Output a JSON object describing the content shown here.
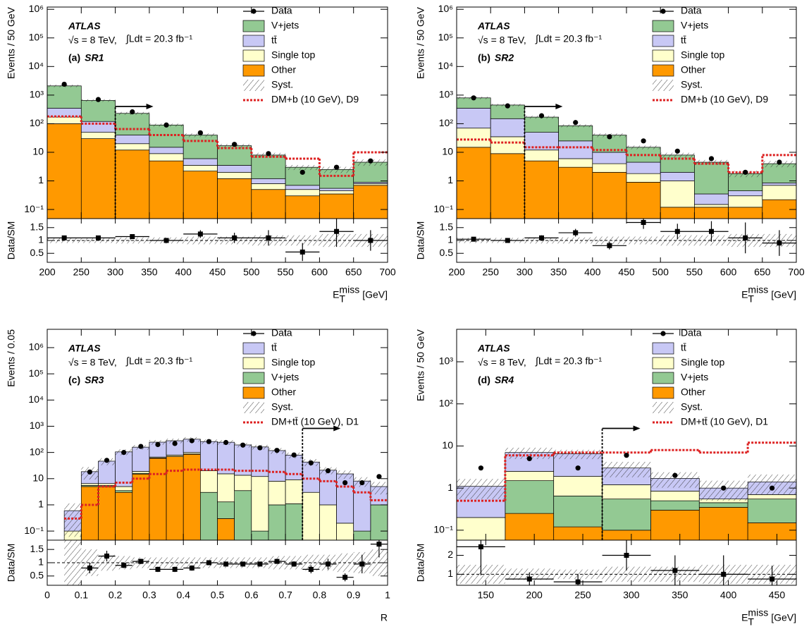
{
  "chart_data": [
    {
      "type": "stacked_histogram",
      "experiment": "ATLAS",
      "energy": "√s = 8 TeV,",
      "luminosity": "∫Ldt = 20.3 fb⁻¹",
      "panel": "(a)",
      "region": "SR1",
      "ylabel": "Events / 50 GeV",
      "ratio_ylabel": "Data/SM",
      "xlabel": {
        "base": "E",
        "sup": "miss",
        "sub": "T",
        "unit": "[GeV]"
      },
      "bins": [
        200,
        250,
        300,
        350,
        400,
        450,
        500,
        550,
        600,
        650,
        700
      ],
      "xlim": [
        200,
        700
      ],
      "xticks": [
        200,
        250,
        300,
        350,
        400,
        450,
        500,
        550,
        600,
        650,
        700
      ],
      "log_y": true,
      "ylim": [
        0.048,
        1200000
      ],
      "yticks": [
        {
          "value": 0.1,
          "label": "10⁻¹"
        },
        1,
        10,
        {
          "value": 100,
          "label": "10²"
        },
        {
          "value": 1000,
          "label": "10³"
        },
        {
          "value": 10000,
          "label": "10⁴"
        },
        {
          "value": 100000,
          "label": "10⁵"
        },
        {
          "value": 1000000,
          "label": "10⁶"
        }
      ],
      "ratio_ylim": [
        0.15,
        1.85
      ],
      "ratio_yticks": [
        0.5,
        1,
        1.5
      ],
      "ratio_reference": 1,
      "data": {
        "name": "Data",
        "color": "#000000",
        "values": [
          2400,
          700,
          260,
          90,
          48,
          19,
          9,
          2,
          3,
          5
        ]
      },
      "series": [
        {
          "name": "Other",
          "color": "#ff9900",
          "values": [
            100,
            30,
            12,
            5,
            2.2,
            1.2,
            0.5,
            0.3,
            0.35,
            0.7
          ]
        },
        {
          "name": "Single top",
          "color": "#ffffcc",
          "values": [
            70,
            20,
            8,
            4,
            1.3,
            0.8,
            0.3,
            0.2,
            0.1,
            0.1
          ]
        },
        {
          "name": "tt̄",
          "color": "#c8c8f5",
          "values": [
            180,
            70,
            20,
            6,
            2.5,
            1.5,
            0.4,
            0.2,
            0.1,
            0.1
          ]
        },
        {
          "name": "V+jets",
          "color": "#93c993",
          "values": [
            1750,
            530,
            190,
            75,
            34,
            13.5,
            6.8,
            2.3,
            1.95,
            3.6
          ]
        }
      ],
      "syst": {
        "name": "Syst.",
        "values": [
          0.1,
          0.1,
          0.12,
          0.12,
          0.15,
          0.15,
          0.2,
          0.2,
          0.25,
          0.25
        ]
      },
      "signal": {
        "name": "DM+b (10 GeV), D9",
        "color": "#dd2222",
        "values": [
          180,
          100,
          65,
          40,
          25,
          14,
          7,
          6,
          1.5,
          10
        ]
      },
      "ratio": {
        "values": [
          1.1,
          1.1,
          1.15,
          1.0,
          1.25,
          1.1,
          1.1,
          0.55,
          1.35,
          1.0
        ],
        "errors": [
          0.03,
          0.05,
          0.08,
          0.1,
          0.15,
          0.2,
          0.3,
          0.35,
          0.6,
          0.4
        ]
      },
      "cut": 300
    },
    {
      "type": "stacked_histogram",
      "experiment": "ATLAS",
      "energy": "√s = 8 TeV,",
      "luminosity": "∫Ldt = 20.3 fb⁻¹",
      "panel": "(b)",
      "region": "SR2",
      "ylabel": "Events / 50 GeV",
      "ratio_ylabel": "Data/SM",
      "xlabel": {
        "base": "E",
        "sup": "miss",
        "sub": "T",
        "unit": "[GeV]"
      },
      "bins": [
        200,
        250,
        300,
        350,
        400,
        450,
        500,
        550,
        600,
        650,
        700
      ],
      "xlim": [
        200,
        700
      ],
      "xticks": [
        200,
        250,
        300,
        350,
        400,
        450,
        500,
        550,
        600,
        650,
        700
      ],
      "log_y": true,
      "ylim": [
        0.048,
        1200000
      ],
      "yticks": [
        {
          "value": 0.1,
          "label": "10⁻¹"
        },
        1,
        10,
        {
          "value": 100,
          "label": "10²"
        },
        {
          "value": 1000,
          "label": "10³"
        },
        {
          "value": 10000,
          "label": "10⁴"
        },
        {
          "value": 100000,
          "label": "10⁵"
        },
        {
          "value": 1000000,
          "label": "10⁶"
        }
      ],
      "ratio_ylim": [
        0.15,
        1.85
      ],
      "ratio_yticks": [
        0.5,
        1,
        1.5
      ],
      "ratio_reference": 1,
      "data": {
        "name": "Data",
        "color": "#000000",
        "values": [
          800,
          420,
          190,
          110,
          35,
          25,
          11,
          6,
          2,
          4.5
        ]
      },
      "series": [
        {
          "name": "Other",
          "color": "#ff9900",
          "values": [
            15,
            9,
            5,
            3,
            2,
            0.9,
            0.12,
            0.12,
            0.12,
            0.22
          ]
        },
        {
          "name": "Single top",
          "color": "#ffffcc",
          "values": [
            55,
            26,
            7,
            3,
            2,
            0.9,
            0.88,
            0.03,
            0.18,
            0.48
          ]
        },
        {
          "name": "tt̄",
          "color": "#c8c8f5",
          "values": [
            280,
            115,
            38,
            19,
            6,
            2.7,
            1,
            0.2,
            0.15,
            0.15
          ]
        },
        {
          "name": "V+jets",
          "color": "#93c993",
          "values": [
            450,
            300,
            120,
            60,
            30,
            10.5,
            6,
            4.15,
            1.35,
            3.15
          ]
        }
      ],
      "syst": {
        "name": "Syst.",
        "values": [
          0.1,
          0.1,
          0.12,
          0.12,
          0.15,
          0.15,
          0.2,
          0.2,
          0.25,
          0.25
        ]
      },
      "signal": {
        "name": "DM+b (10 GeV), D9",
        "color": "#dd2222",
        "values": [
          28,
          22,
          15,
          15,
          12,
          8,
          6,
          4,
          2,
          8
        ]
      },
      "ratio": {
        "values": [
          1.05,
          1.0,
          1.1,
          1.3,
          0.8,
          1.7,
          1.35,
          1.35,
          1.1,
          0.9
        ],
        "errors": [
          0.05,
          0.07,
          0.1,
          0.15,
          0.15,
          0.25,
          0.3,
          0.4,
          0.6,
          0.5
        ]
      },
      "cut": 300
    },
    {
      "type": "stacked_histogram",
      "experiment": "ATLAS",
      "energy": "√s = 8 TeV,",
      "luminosity": "∫Ldt = 20.3 fb⁻¹",
      "panel": "(c)",
      "region": "SR3",
      "ylabel": "Events / 0.05",
      "ratio_ylabel": "Data/SM",
      "xlabel": {
        "base": "R"
      },
      "bins": [
        0.05,
        0.1,
        0.15,
        0.2,
        0.25,
        0.3,
        0.35,
        0.4,
        0.45,
        0.5,
        0.55,
        0.6,
        0.65,
        0.7,
        0.75,
        0.8,
        0.85,
        0.9,
        0.95,
        1
      ],
      "xlim": [
        0,
        1
      ],
      "xticks": [
        0,
        0.1,
        0.2,
        0.3,
        0.4,
        0.5,
        0.6,
        0.7,
        0.8,
        0.9,
        1
      ],
      "log_y": true,
      "ylim": [
        0.045,
        5000000
      ],
      "yticks": [
        {
          "value": 0.1,
          "label": "10⁻¹"
        },
        1,
        10,
        {
          "value": 100,
          "label": "10²"
        },
        {
          "value": 1000,
          "label": "10³"
        },
        {
          "value": 10000,
          "label": "10⁴"
        },
        {
          "value": 100000,
          "label": "10⁵"
        },
        {
          "value": 1000000,
          "label": "10⁶"
        }
      ],
      "ratio_ylim": [
        0.15,
        1.85
      ],
      "ratio_yticks": [
        0.5,
        1,
        1.5
      ],
      "ratio_reference": 1,
      "data": {
        "name": "Data",
        "color": "#000000",
        "values": [
          null,
          18,
          50,
          100,
          170,
          200,
          220,
          280,
          260,
          240,
          190,
          150,
          120,
          80,
          40,
          20,
          7,
          7,
          12
        ]
      },
      "series": [
        {
          "name": "Other",
          "color": "#ff9900",
          "values": [
            0,
            5,
            5,
            3,
            15,
            60,
            70,
            85,
            0,
            0.3,
            0,
            0,
            0,
            0,
            0,
            0,
            0,
            0,
            0
          ]
        },
        {
          "name": "V+jets",
          "color": "#93c993",
          "values": [
            0,
            0.5,
            0.5,
            0.5,
            1,
            2,
            2,
            3,
            3,
            1,
            3.5,
            0.1,
            1,
            1.1,
            0,
            0,
            0,
            0.1,
            1
          ]
        },
        {
          "name": "Single top",
          "color": "#ffffcc",
          "values": [
            0.1,
            1,
            1,
            1.5,
            3,
            5,
            8,
            12,
            17,
            14,
            10,
            12,
            7,
            8,
            3,
            1,
            0.2,
            0,
            0
          ]
        },
        {
          "name": "tt̄",
          "color": "#c8c8f5",
          "values": [
            0.5,
            12,
            40,
            100,
            140,
            180,
            200,
            220,
            240,
            230,
            180,
            150,
            110,
            70,
            40,
            20,
            15,
            8,
            4
          ]
        }
      ],
      "syst": {
        "name": "Syst.",
        "values": [
          0.9,
          0.5,
          0.3,
          0.25,
          0.2,
          0.2,
          0.2,
          0.2,
          0.2,
          0.2,
          0.2,
          0.2,
          0.25,
          0.25,
          0.3,
          0.3,
          0.35,
          0.4,
          0.5
        ]
      },
      "signal": {
        "name": "DM+tt̄ (10 GeV), D1",
        "color": "#dd2222",
        "values": [
          0.3,
          1,
          5,
          7,
          10,
          15,
          20,
          22,
          22,
          22,
          20,
          20,
          18,
          15,
          10,
          8,
          5,
          3,
          1.5
        ]
      },
      "ratio": {
        "values": [
          null,
          0.8,
          1.25,
          0.9,
          1.05,
          0.75,
          0.75,
          0.8,
          1.0,
          0.95,
          0.95,
          0.95,
          1.05,
          0.95,
          0.75,
          0.95,
          0.45,
          0.95,
          1.7
        ],
        "errors": [
          null,
          0.2,
          0.2,
          0.1,
          0.1,
          0.1,
          0.1,
          0.1,
          0.06,
          0.06,
          0.07,
          0.08,
          0.09,
          0.1,
          0.15,
          0.2,
          0.15,
          0.35,
          0.5
        ]
      },
      "cut": 0.75
    },
    {
      "type": "stacked_histogram",
      "experiment": "ATLAS",
      "energy": "√s = 8 TeV,",
      "luminosity": "∫Ldt = 20.3 fb⁻¹",
      "panel": "(d)",
      "region": "SR4",
      "ylabel": "Events / 50 GeV",
      "ratio_ylabel": "Data/SM",
      "xlabel": {
        "base": "E",
        "sup": "miss",
        "sub": "T",
        "unit": "[GeV]"
      },
      "bins": [
        120,
        170,
        220,
        270,
        320,
        370,
        420,
        470
      ],
      "xlim": [
        120,
        470
      ],
      "xticks": [
        150,
        200,
        250,
        300,
        350,
        400,
        450
      ],
      "log_y": true,
      "ylim": [
        0.058,
        5900
      ],
      "yticks": [
        {
          "value": 0.1,
          "label": "10⁻¹"
        },
        1,
        10,
        {
          "value": 100,
          "label": "10²"
        },
        {
          "value": 1000,
          "label": "10³"
        }
      ],
      "ratio_ylim": [
        0.42,
        2.8
      ],
      "ratio_yticks": [
        1,
        2
      ],
      "ratio_reference": 1,
      "data": {
        "name": "Data",
        "color": "#000000",
        "values": [
          3,
          5,
          3,
          6,
          2,
          1,
          1
        ]
      },
      "series": [
        {
          "name": "Other",
          "color": "#ff9900",
          "values": [
            0,
            0.25,
            0.12,
            0.1,
            0.3,
            0.35,
            0.15
          ]
        },
        {
          "name": "V+jets",
          "color": "#93c993",
          "values": [
            0,
            1.25,
            0.53,
            0.45,
            0.2,
            0.1,
            0.4
          ]
        },
        {
          "name": "Single top",
          "color": "#ffffcc",
          "values": [
            0.2,
            1,
            1.25,
            0.65,
            0.35,
            0.1,
            0.15
          ]
        },
        {
          "name": "tt̄",
          "color": "#c8c8f5",
          "values": [
            0.9,
            4.5,
            4.6,
            1.8,
            0.85,
            0.45,
            0.7
          ]
        }
      ],
      "syst": {
        "name": "Syst.",
        "values": [
          0.5,
          0.3,
          0.25,
          0.4,
          0.4,
          0.5,
          0.5
        ]
      },
      "signal": {
        "name": "DM+tt̄ (10 GeV), D1",
        "color": "#dd2222",
        "values": [
          0.5,
          6,
          7,
          7,
          8,
          7,
          12
        ]
      },
      "ratio": {
        "values": [
          2.45,
          0.75,
          0.6,
          2.0,
          1.2,
          1.0,
          0.75
        ],
        "errors": [
          1.5,
          0.35,
          0.4,
          0.8,
          0.8,
          1.0,
          0.7
        ]
      },
      "cut": 270
    }
  ]
}
